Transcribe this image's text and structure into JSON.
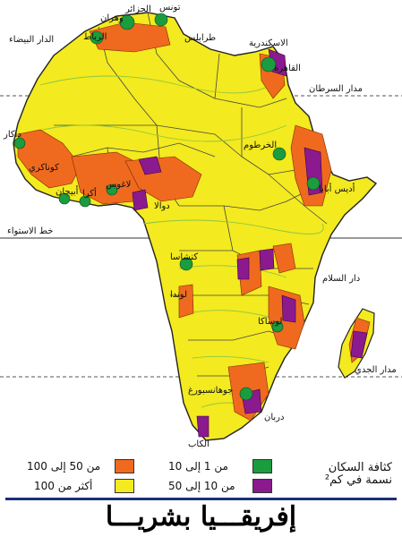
{
  "title": "إفريقـــيا بشريـــا",
  "colors": {
    "land": "#f3ea1f",
    "sea": "#ffffff",
    "border": "#3a3a3a",
    "isoline": "#8ec63f",
    "density_1_10": "#1a9c3f",
    "density_10_50": "#8b1a8f",
    "density_50_100": "#ef6a1f",
    "density_100_plus": "#f3ea1f",
    "frame": "#1a2e7a"
  },
  "reference_lines": {
    "tropic_cancer": "مدار السرطان",
    "equator": "خط الاستواء",
    "tropic_capricorn": "مدار الجدي"
  },
  "cities": [
    {
      "name": "تونس"
    },
    {
      "name": "الجزائر"
    },
    {
      "name": "وهران"
    },
    {
      "name": "الرباط"
    },
    {
      "name": "الدار البيضاء"
    },
    {
      "name": "طرابلس"
    },
    {
      "name": "الاسكندرية"
    },
    {
      "name": "القاهرة"
    },
    {
      "name": "الخرطوم"
    },
    {
      "name": "أديس أبابا"
    },
    {
      "name": "داكار"
    },
    {
      "name": "كوناكري"
    },
    {
      "name": "أبيجان"
    },
    {
      "name": "أكرا"
    },
    {
      "name": "لاغوس"
    },
    {
      "name": "دوالا"
    },
    {
      "name": "كنشاسا"
    },
    {
      "name": "دار السلام"
    },
    {
      "name": "لوندا"
    },
    {
      "name": "لوساكا"
    },
    {
      "name": "جوهانسبورغ"
    },
    {
      "name": "دربان"
    },
    {
      "name": "الكاب"
    }
  ],
  "legend": {
    "title_line1": "كثافة السكان",
    "title_line2": "نسمة في كم²",
    "items": [
      {
        "label": "من 1 إلى 10",
        "color": "#1a9c3f"
      },
      {
        "label": "من 10 إلى 50",
        "color": "#8b1a8f"
      },
      {
        "label": "من 50 إلى 100",
        "color": "#ef6a1f"
      },
      {
        "label": "أكثر من 100",
        "color": "#f3ea1f"
      }
    ]
  }
}
